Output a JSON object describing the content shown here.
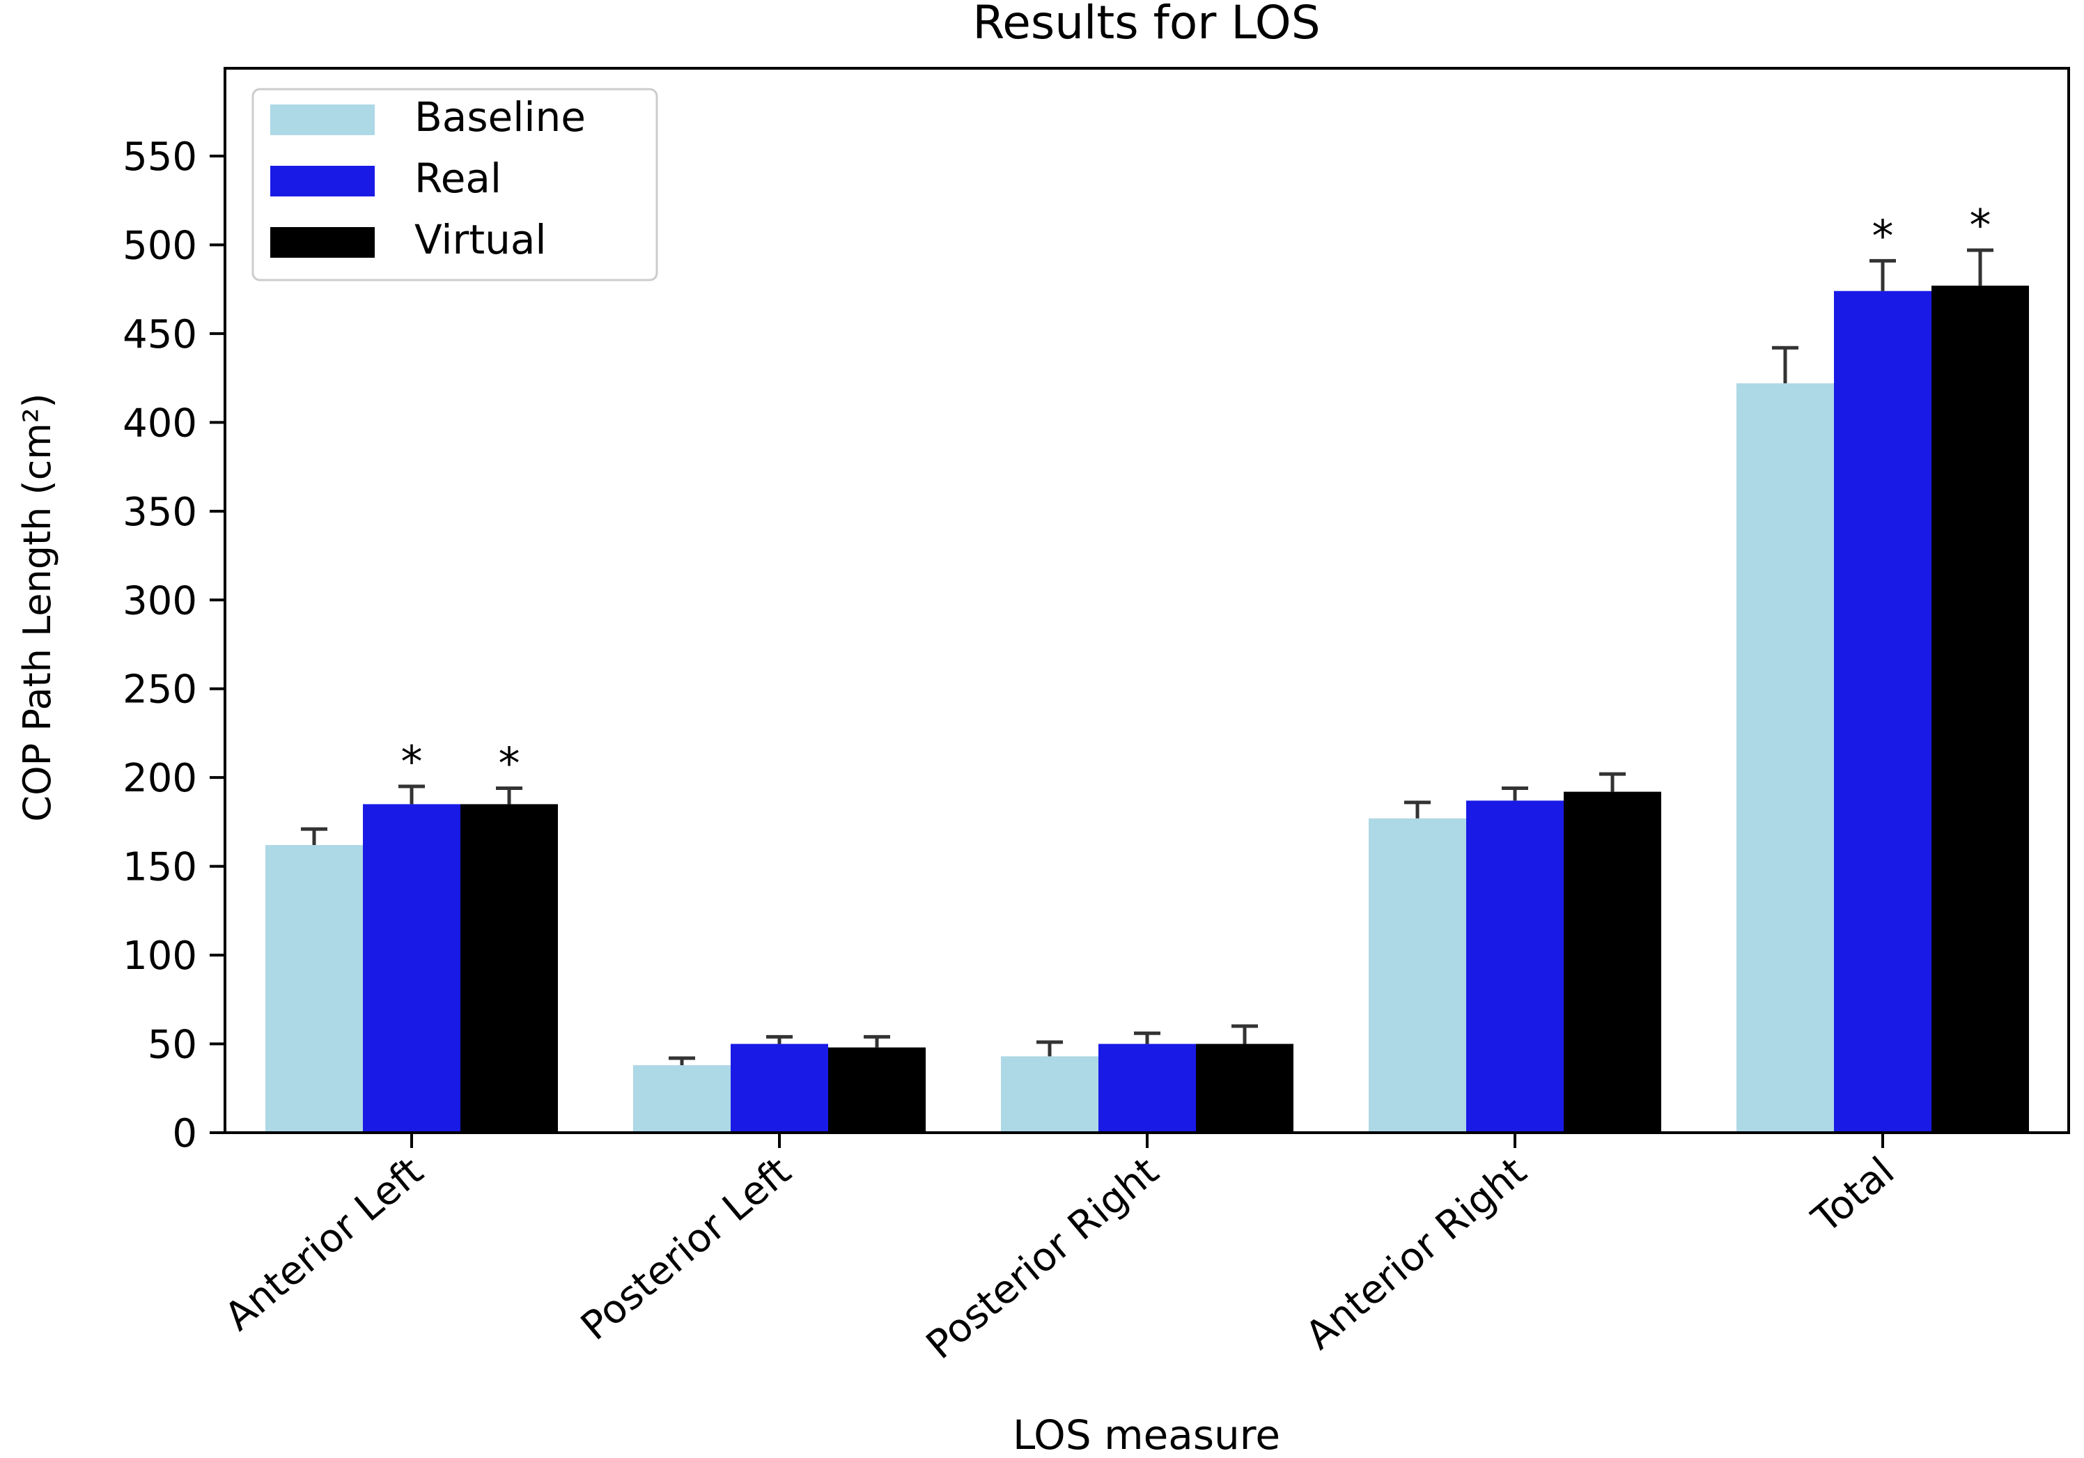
{
  "chart_data": {
    "type": "bar",
    "title": "Results for LOS",
    "xlabel": "LOS measure",
    "ylabel": "COP Path Length (cm²)",
    "ylim": [
      0,
      600
    ],
    "yticks": [
      0,
      50,
      100,
      150,
      200,
      250,
      300,
      350,
      400,
      450,
      500,
      550
    ],
    "categories": [
      "Anterior Left",
      "Posterior Left",
      "Posterior Right",
      "Anterior Right",
      "Total"
    ],
    "series": [
      {
        "name": "Baseline",
        "color": "#ADD8E6",
        "values": [
          162,
          38,
          43,
          177,
          422
        ],
        "errors": [
          9,
          4,
          8,
          9,
          20
        ],
        "significant": [
          false,
          false,
          false,
          false,
          false
        ]
      },
      {
        "name": "Real",
        "color": "#1A1AE6",
        "values": [
          185,
          50,
          50,
          187,
          474
        ],
        "errors": [
          10,
          4,
          6,
          7,
          17
        ],
        "significant": [
          true,
          false,
          false,
          false,
          true
        ]
      },
      {
        "name": "Virtual",
        "color": "#000000",
        "values": [
          185,
          48,
          50,
          192,
          477
        ],
        "errors": [
          9,
          6,
          10,
          10,
          20
        ],
        "significant": [
          true,
          false,
          false,
          false,
          true
        ]
      }
    ],
    "significance_marker": "*",
    "legend_position": "upper-left",
    "grid": false
  }
}
